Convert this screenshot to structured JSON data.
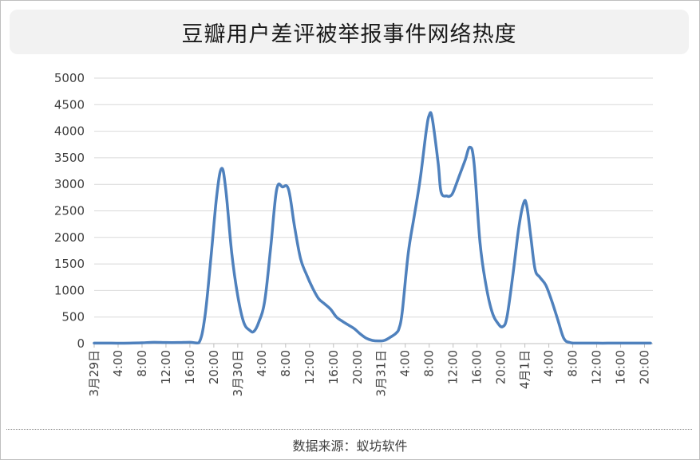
{
  "source_text": "数据来源：蚁坊软件",
  "chart_data": {
    "type": "line",
    "title": "豆瓣用户差评被举报事件网络热度",
    "xlabel": "",
    "ylabel": "",
    "ylim": [
      0,
      5000
    ],
    "yticks": [
      0,
      500,
      1000,
      1500,
      2000,
      2500,
      3000,
      3500,
      4000,
      4500,
      5000
    ],
    "grid": true,
    "legend": "none",
    "line_color": "#4f81bd",
    "x_range_hours": [
      0,
      93
    ],
    "x_tick_labels": [
      {
        "hour": 0,
        "label": "3月29日"
      },
      {
        "hour": 4,
        "label": "4:00"
      },
      {
        "hour": 8,
        "label": "8:00"
      },
      {
        "hour": 12,
        "label": "12:00"
      },
      {
        "hour": 16,
        "label": "16:00"
      },
      {
        "hour": 20,
        "label": "20:00"
      },
      {
        "hour": 24,
        "label": "3月30日"
      },
      {
        "hour": 28,
        "label": "4:00"
      },
      {
        "hour": 32,
        "label": "8:00"
      },
      {
        "hour": 36,
        "label": "12:00"
      },
      {
        "hour": 40,
        "label": "16:00"
      },
      {
        "hour": 44,
        "label": "20:00"
      },
      {
        "hour": 48,
        "label": "3月31日"
      },
      {
        "hour": 52,
        "label": "4:00"
      },
      {
        "hour": 56,
        "label": "8:00"
      },
      {
        "hour": 60,
        "label": "12:00"
      },
      {
        "hour": 64,
        "label": "16:00"
      },
      {
        "hour": 68,
        "label": "20:00"
      },
      {
        "hour": 72,
        "label": "4月1日"
      },
      {
        "hour": 76,
        "label": "4:00"
      },
      {
        "hour": 80,
        "label": "8:00"
      },
      {
        "hour": 84,
        "label": "12:00"
      },
      {
        "hour": 88,
        "label": "16:00"
      },
      {
        "hour": 92,
        "label": "20:00"
      }
    ],
    "series": [
      {
        "name": "",
        "points": [
          [
            0,
            10
          ],
          [
            2,
            10
          ],
          [
            4,
            8
          ],
          [
            6,
            10
          ],
          [
            8,
            15
          ],
          [
            10,
            25
          ],
          [
            12,
            20
          ],
          [
            14,
            20
          ],
          [
            16,
            25
          ],
          [
            17.5,
            15
          ],
          [
            18.5,
            500
          ],
          [
            19.5,
            1600
          ],
          [
            20.5,
            2800
          ],
          [
            21.3,
            3300
          ],
          [
            22,
            2900
          ],
          [
            23,
            1700
          ],
          [
            24,
            900
          ],
          [
            25,
            400
          ],
          [
            26,
            250
          ],
          [
            26.7,
            230
          ],
          [
            27.5,
            400
          ],
          [
            28.5,
            800
          ],
          [
            29.5,
            1800
          ],
          [
            30.5,
            2900
          ],
          [
            31.5,
            2950
          ],
          [
            32.5,
            2900
          ],
          [
            33.5,
            2200
          ],
          [
            34.5,
            1600
          ],
          [
            35.5,
            1300
          ],
          [
            36.5,
            1050
          ],
          [
            37.5,
            850
          ],
          [
            38.5,
            750
          ],
          [
            39.5,
            650
          ],
          [
            40.5,
            500
          ],
          [
            41.5,
            420
          ],
          [
            42.5,
            350
          ],
          [
            43.5,
            280
          ],
          [
            44.5,
            180
          ],
          [
            45.5,
            100
          ],
          [
            46.5,
            60
          ],
          [
            47.5,
            50
          ],
          [
            48.5,
            60
          ],
          [
            49.5,
            120
          ],
          [
            50.5,
            200
          ],
          [
            51,
            300
          ],
          [
            51.5,
            600
          ],
          [
            52.5,
            1700
          ],
          [
            53.5,
            2400
          ],
          [
            54.5,
            3100
          ],
          [
            55.5,
            4000
          ],
          [
            56,
            4300
          ],
          [
            56.5,
            4250
          ],
          [
            57.5,
            3400
          ],
          [
            58,
            2850
          ],
          [
            59,
            2780
          ],
          [
            59.5,
            2780
          ],
          [
            60,
            2850
          ],
          [
            61,
            3150
          ],
          [
            62,
            3450
          ],
          [
            62.8,
            3700
          ],
          [
            63.5,
            3400
          ],
          [
            64.5,
            1900
          ],
          [
            65.5,
            1100
          ],
          [
            66.5,
            600
          ],
          [
            67.5,
            380
          ],
          [
            68.3,
            320
          ],
          [
            69,
            500
          ],
          [
            70,
            1300
          ],
          [
            71,
            2200
          ],
          [
            71.8,
            2650
          ],
          [
            72.3,
            2600
          ],
          [
            73,
            2000
          ],
          [
            73.7,
            1400
          ],
          [
            74.5,
            1250
          ],
          [
            75.5,
            1100
          ],
          [
            76.5,
            800
          ],
          [
            77.5,
            450
          ],
          [
            78.5,
            100
          ],
          [
            79.5,
            20
          ],
          [
            80.5,
            10
          ],
          [
            82,
            10
          ],
          [
            83.5,
            10
          ],
          [
            85,
            8
          ],
          [
            86.5,
            10
          ],
          [
            88,
            10
          ],
          [
            90,
            10
          ],
          [
            93,
            10
          ]
        ]
      }
    ]
  }
}
